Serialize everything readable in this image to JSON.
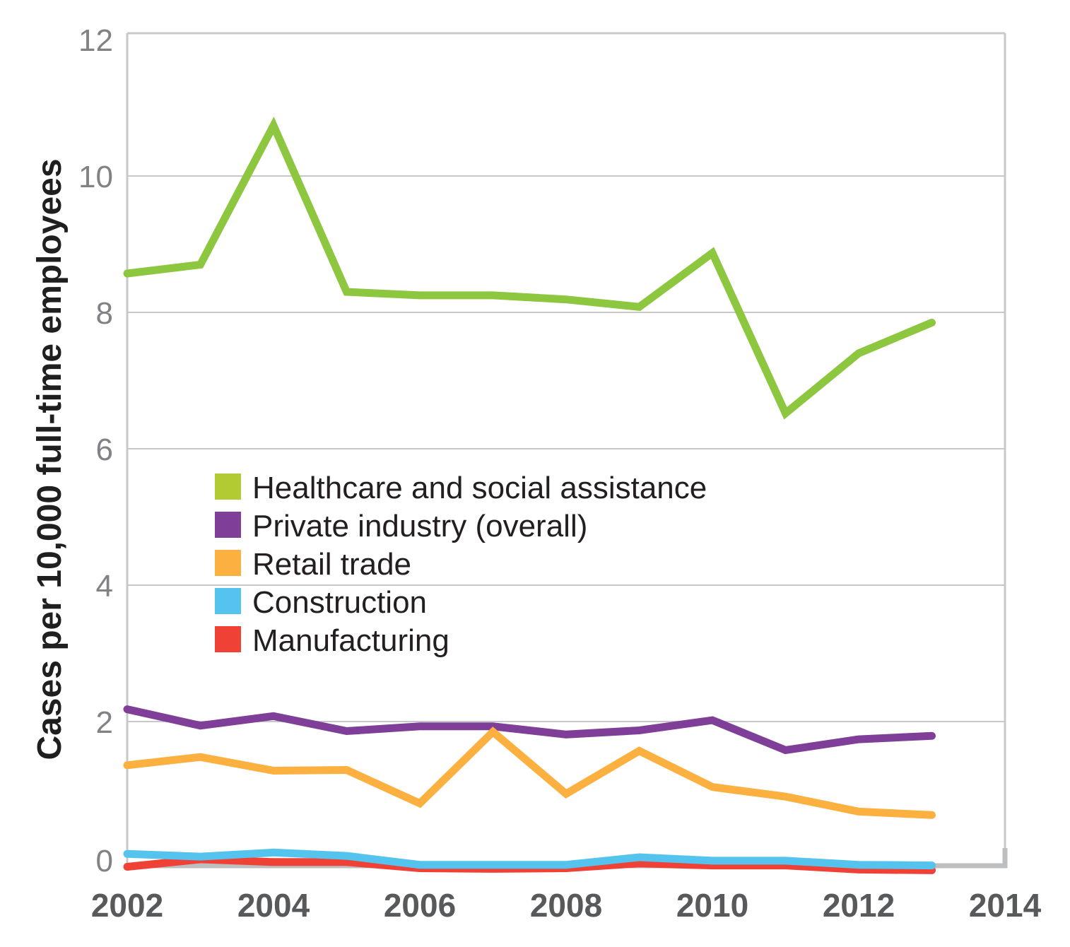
{
  "chart_data": {
    "type": "line",
    "title": "",
    "xlabel": "",
    "ylabel": "Cases per 10,000 full-time employees",
    "xlim": [
      2002,
      2014
    ],
    "ylim": [
      0,
      12
    ],
    "grid": true,
    "legend_position": "center-left",
    "x_ticks": [
      "2002",
      "2004",
      "2006",
      "2008",
      "2010",
      "2012",
      "2014"
    ],
    "y_ticks": [
      "0",
      "2",
      "4",
      "6",
      "8",
      "10",
      "12"
    ],
    "x": [
      2002,
      2003,
      2004,
      2005,
      2006,
      2007,
      2008,
      2009,
      2010,
      2011,
      2012,
      2013
    ],
    "series": [
      {
        "name": "Healthcare and social assistance",
        "color": "#8dc63f",
        "legend_color": "#b2cb33",
        "values": [
          8.57,
          8.7,
          10.74,
          8.3,
          8.25,
          8.25,
          8.19,
          8.08,
          8.87,
          6.52,
          7.4,
          7.85
        ]
      },
      {
        "name": "Private industry (overall)",
        "color": "#7f3f98",
        "legend_color": "#7f3f98",
        "values": [
          2.18,
          1.94,
          2.08,
          1.86,
          1.93,
          1.93,
          1.81,
          1.87,
          2.02,
          1.58,
          1.74,
          1.79
        ]
      },
      {
        "name": "Retail trade",
        "color": "#fbb040",
        "legend_color": "#fbb040",
        "values": [
          1.36,
          1.48,
          1.28,
          1.29,
          0.8,
          1.85,
          0.94,
          1.57,
          1.04,
          0.9,
          0.68,
          0.63
        ]
      },
      {
        "name": "Manufacturing",
        "color": "#ef4136",
        "legend_color": "#ef4136",
        "values": [
          -0.13,
          -0.02,
          -0.06,
          -0.06,
          -0.15,
          -0.16,
          -0.15,
          -0.08,
          -0.11,
          -0.11,
          -0.17,
          -0.18
        ]
      },
      {
        "name": "Construction",
        "color": "#54c3ed",
        "legend_color": "#54c3ed",
        "values": [
          0.06,
          0.02,
          0.08,
          0.03,
          -0.1,
          -0.1,
          -0.1,
          0.01,
          -0.04,
          -0.04,
          -0.1,
          -0.11
        ]
      }
    ],
    "legend_order": [
      "Healthcare and social assistance",
      "Private industry (overall)",
      "Retail trade",
      "Construction",
      "Manufacturing"
    ]
  }
}
